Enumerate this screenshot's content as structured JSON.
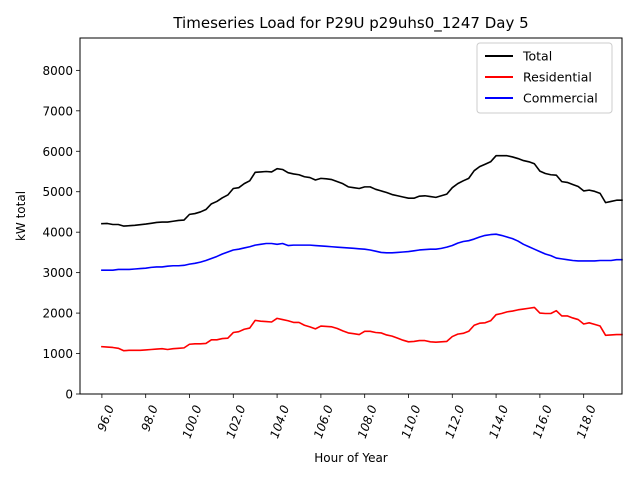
{
  "chart_data": {
    "type": "line",
    "title": "Timeseries Load for P29U p29uhs0_1247  Day 5",
    "xlabel": "Hour of Year",
    "ylabel": "kW total",
    "xlim": [
      95.0,
      119.75
    ],
    "ylim": [
      0,
      8800
    ],
    "xticks": [
      96,
      98,
      100,
      102,
      104,
      106,
      108,
      110,
      112,
      114,
      116,
      118
    ],
    "xtick_labels": [
      "96.0",
      "98.0",
      "100.0",
      "102.0",
      "104.0",
      "106.0",
      "108.0",
      "110.0",
      "112.0",
      "114.0",
      "116.0",
      "118.0"
    ],
    "yticks": [
      0,
      1000,
      2000,
      3000,
      4000,
      5000,
      6000,
      7000,
      8000
    ],
    "ytick_labels": [
      "0",
      "1000",
      "2000",
      "3000",
      "4000",
      "5000",
      "6000",
      "7000",
      "8000"
    ],
    "grid": false,
    "legend_position": "top-right",
    "x": [
      96.0,
      96.25,
      96.5,
      96.75,
      97.0,
      97.25,
      97.5,
      97.75,
      98.0,
      98.25,
      98.5,
      98.75,
      99.0,
      99.25,
      99.5,
      99.75,
      100.0,
      100.25,
      100.5,
      100.75,
      101.0,
      101.25,
      101.5,
      101.75,
      102.0,
      102.25,
      102.5,
      102.75,
      103.0,
      103.25,
      103.5,
      103.75,
      104.0,
      104.25,
      104.5,
      104.75,
      105.0,
      105.25,
      105.5,
      105.75,
      106.0,
      106.25,
      106.5,
      106.75,
      107.0,
      107.25,
      107.5,
      107.75,
      108.0,
      108.25,
      108.5,
      108.75,
      109.0,
      109.25,
      109.5,
      109.75,
      110.0,
      110.25,
      110.5,
      110.75,
      111.0,
      111.25,
      111.5,
      111.75,
      112.0,
      112.25,
      112.5,
      112.75,
      113.0,
      113.25,
      113.5,
      113.75,
      114.0,
      114.25,
      114.5,
      114.75,
      115.0,
      115.25,
      115.5,
      115.75,
      116.0,
      116.25,
      116.5,
      116.75,
      117.0,
      117.25,
      117.5,
      117.75,
      118.0,
      118.25,
      118.5,
      118.75,
      119.0,
      119.25,
      119.5,
      119.75
    ],
    "series": [
      {
        "name": "Total",
        "color": "#000000",
        "values": [
          4210,
          4215,
          4190,
          4190,
          4150,
          4160,
          4170,
          4185,
          4200,
          4220,
          4240,
          4250,
          4250,
          4270,
          4290,
          4300,
          4440,
          4460,
          4500,
          4560,
          4700,
          4760,
          4850,
          4920,
          5080,
          5100,
          5200,
          5270,
          5480,
          5490,
          5500,
          5490,
          5570,
          5550,
          5470,
          5440,
          5420,
          5370,
          5350,
          5290,
          5330,
          5320,
          5300,
          5250,
          5200,
          5120,
          5100,
          5080,
          5120,
          5120,
          5060,
          5020,
          4980,
          4930,
          4900,
          4870,
          4840,
          4840,
          4890,
          4900,
          4880,
          4860,
          4900,
          4940,
          5100,
          5200,
          5270,
          5330,
          5520,
          5620,
          5680,
          5740,
          5890,
          5890,
          5890,
          5860,
          5820,
          5770,
          5740,
          5690,
          5510,
          5450,
          5420,
          5410,
          5250,
          5230,
          5180,
          5130,
          5020,
          5040,
          5010,
          4960,
          4730,
          4760,
          4790,
          4790
        ]
      },
      {
        "name": "Residential",
        "color": "#ff0000",
        "values": [
          1170,
          1160,
          1150,
          1130,
          1070,
          1080,
          1080,
          1080,
          1090,
          1100,
          1110,
          1120,
          1100,
          1120,
          1130,
          1140,
          1230,
          1240,
          1240,
          1250,
          1340,
          1340,
          1370,
          1380,
          1520,
          1540,
          1600,
          1630,
          1820,
          1800,
          1790,
          1780,
          1870,
          1840,
          1810,
          1770,
          1770,
          1700,
          1660,
          1610,
          1680,
          1670,
          1660,
          1620,
          1560,
          1510,
          1490,
          1470,
          1550,
          1550,
          1520,
          1510,
          1460,
          1430,
          1380,
          1330,
          1290,
          1300,
          1320,
          1320,
          1290,
          1280,
          1290,
          1300,
          1420,
          1480,
          1500,
          1550,
          1700,
          1750,
          1760,
          1810,
          1960,
          1990,
          2030,
          2050,
          2080,
          2100,
          2120,
          2140,
          2000,
          1990,
          1990,
          2060,
          1930,
          1930,
          1880,
          1840,
          1730,
          1760,
          1720,
          1680,
          1450,
          1460,
          1470,
          1470
        ]
      },
      {
        "name": "Commercial",
        "color": "#0000ff",
        "values": [
          3060,
          3060,
          3060,
          3080,
          3080,
          3080,
          3090,
          3100,
          3110,
          3130,
          3140,
          3140,
          3160,
          3170,
          3170,
          3180,
          3210,
          3230,
          3260,
          3300,
          3350,
          3400,
          3460,
          3510,
          3560,
          3580,
          3610,
          3640,
          3680,
          3700,
          3720,
          3720,
          3700,
          3720,
          3670,
          3680,
          3680,
          3680,
          3680,
          3670,
          3660,
          3650,
          3640,
          3630,
          3620,
          3610,
          3600,
          3590,
          3580,
          3560,
          3530,
          3500,
          3490,
          3490,
          3500,
          3510,
          3520,
          3540,
          3560,
          3570,
          3580,
          3580,
          3600,
          3630,
          3670,
          3730,
          3770,
          3790,
          3830,
          3880,
          3920,
          3940,
          3950,
          3920,
          3880,
          3840,
          3780,
          3700,
          3640,
          3580,
          3520,
          3460,
          3420,
          3360,
          3340,
          3320,
          3300,
          3290,
          3290,
          3290,
          3290,
          3300,
          3300,
          3300,
          3320,
          3320
        ]
      }
    ]
  }
}
